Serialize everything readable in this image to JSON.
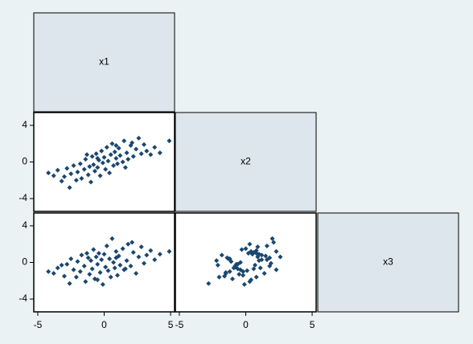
{
  "chart_data": [
    {
      "type": "scatter",
      "color": "#1a476f",
      "xlim": [
        -5.3,
        5.3
      ],
      "ylim": [
        -5.4,
        5.4
      ],
      "yticks": [
        -4,
        0,
        4
      ],
      "x": [
        -4.2,
        -3.8,
        -3.5,
        -3.2,
        -3.0,
        -2.8,
        -2.6,
        -2.5,
        -2.3,
        -2.1,
        -2.0,
        -1.8,
        -1.7,
        -1.5,
        -1.4,
        -1.2,
        -1.1,
        -1.0,
        -0.9,
        -0.8,
        -0.7,
        -0.6,
        -0.5,
        -0.4,
        -0.3,
        -0.2,
        -0.1,
        0.0,
        0.1,
        0.2,
        0.3,
        0.4,
        0.5,
        0.6,
        0.7,
        0.8,
        0.9,
        1.0,
        1.1,
        1.2,
        1.4,
        1.5,
        1.7,
        1.8,
        2.0,
        2.2,
        2.4,
        2.6,
        2.8,
        3.0,
        3.2,
        3.5,
        3.8,
        4.2,
        4.9,
        -0.5,
        0.9,
        1.6,
        -1.3,
        2.1
      ],
      "y": [
        -1.2,
        -1.5,
        -0.9,
        -2.1,
        -1.6,
        -0.7,
        -2.8,
        -1.3,
        -0.4,
        -2.0,
        -1.1,
        -0.2,
        -1.8,
        -0.8,
        0.3,
        -1.4,
        -0.5,
        -2.2,
        0.6,
        -0.3,
        -1.0,
        0.9,
        -0.6,
        0.2,
        -1.5,
        1.2,
        -0.1,
        0.5,
        -0.8,
        1.6,
        0.1,
        -1.2,
        0.8,
        2.0,
        -0.4,
        1.1,
        0.4,
        -0.2,
        1.5,
        0.7,
        0.0,
        2.3,
        1.0,
        0.3,
        1.8,
        0.6,
        1.4,
        2.6,
        0.9,
        1.9,
        1.2,
        0.8,
        1.6,
        1.0,
        2.3,
        0.4,
        1.8,
        -0.6,
        0.8,
        2.1
      ]
    },
    {
      "type": "scatter",
      "color": "#1a476f",
      "xlim": [
        -5.3,
        5.3
      ],
      "ylim": [
        -5.4,
        5.4
      ],
      "xticks": [
        -5,
        0,
        5
      ],
      "yticks": [
        -4,
        0,
        4
      ],
      "x": [
        -4.2,
        -3.8,
        -3.5,
        -3.2,
        -3.0,
        -2.8,
        -2.6,
        -2.5,
        -2.3,
        -2.1,
        -2.0,
        -1.8,
        -1.7,
        -1.5,
        -1.4,
        -1.2,
        -1.1,
        -1.0,
        -0.9,
        -0.8,
        -0.7,
        -0.6,
        -0.5,
        -0.4,
        -0.3,
        -0.2,
        -0.1,
        0.0,
        0.1,
        0.2,
        0.3,
        0.4,
        0.5,
        0.6,
        0.7,
        0.8,
        0.9,
        1.0,
        1.1,
        1.2,
        1.4,
        1.5,
        1.7,
        1.8,
        2.0,
        2.2,
        2.4,
        2.6,
        2.8,
        3.0,
        3.2,
        3.5,
        3.8,
        4.2,
        4.9,
        -0.5,
        0.9,
        1.6,
        -1.3,
        2.1
      ],
      "y": [
        -1.0,
        -1.2,
        -0.6,
        -0.3,
        -1.5,
        -0.2,
        -2.3,
        0.4,
        -0.8,
        -1.6,
        0.1,
        -1.0,
        0.8,
        -0.4,
        -2.1,
        0.5,
        -1.3,
        0.2,
        -0.7,
        1.4,
        -1.8,
        0.6,
        -0.2,
        1.0,
        -1.1,
        0.3,
        -2.4,
        0.9,
        -0.5,
        1.8,
        -0.9,
        0.4,
        -1.6,
        2.6,
        0.0,
        -0.6,
        1.2,
        -1.4,
        0.7,
        -0.3,
        1.5,
        -0.8,
        0.2,
        2.0,
        -0.4,
        1.1,
        -1.2,
        0.6,
        1.7,
        -0.1,
        0.8,
        1.3,
        0.3,
        0.9,
        1.2,
        -1.9,
        0.5,
        -0.7,
        1.0,
        2.2
      ]
    },
    {
      "type": "scatter",
      "color": "#1a476f",
      "xlim": [
        -5.3,
        5.3
      ],
      "ylim": [
        -5.4,
        5.4
      ],
      "xticks": [
        -5,
        0,
        5
      ],
      "x": [
        -1.2,
        -1.5,
        -0.9,
        -2.1,
        -1.6,
        -0.7,
        -2.8,
        -1.3,
        -0.4,
        -2.0,
        -1.1,
        -0.2,
        -1.8,
        -0.8,
        0.3,
        -1.4,
        -0.5,
        -2.2,
        0.6,
        -0.3,
        -1.0,
        0.9,
        -0.6,
        0.2,
        -1.5,
        1.2,
        -0.1,
        0.5,
        -0.8,
        1.6,
        0.1,
        -1.2,
        0.8,
        2.0,
        -0.4,
        1.1,
        0.4,
        -0.2,
        1.5,
        0.7,
        0.0,
        2.3,
        1.0,
        0.3,
        1.8,
        0.6,
        1.4,
        2.6,
        0.9,
        1.9,
        1.2,
        0.8,
        1.6,
        1.0,
        2.3,
        0.4,
        1.8,
        -0.6,
        0.8,
        2.1
      ],
      "y": [
        -1.0,
        -1.2,
        -0.6,
        -0.3,
        -1.5,
        -0.2,
        -2.3,
        0.4,
        -0.8,
        -1.6,
        0.1,
        -1.0,
        0.8,
        -0.4,
        -2.1,
        0.5,
        -1.3,
        0.2,
        -0.7,
        1.4,
        -1.8,
        0.6,
        -0.2,
        1.0,
        -1.1,
        0.3,
        -2.4,
        0.9,
        -0.5,
        1.8,
        -0.9,
        0.4,
        -1.6,
        2.6,
        0.0,
        -0.6,
        1.2,
        -1.4,
        0.7,
        -0.3,
        1.5,
        -0.8,
        0.2,
        2.0,
        -0.4,
        1.1,
        -1.2,
        0.6,
        1.7,
        -0.1,
        0.8,
        1.3,
        0.3,
        0.9,
        1.2,
        -1.9,
        0.5,
        -0.7,
        1.0,
        2.2
      ]
    }
  ],
  "labels": [
    "x1",
    "x2",
    "x3"
  ]
}
